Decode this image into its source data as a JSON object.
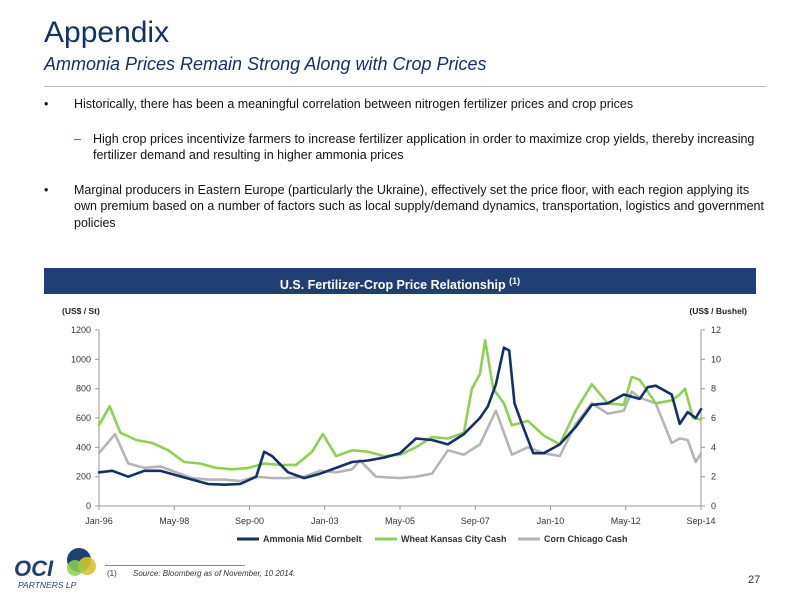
{
  "header": {
    "title": "Appendix",
    "subtitle": "Ammonia Prices Remain Strong Along with Crop Prices"
  },
  "bullets": {
    "b1": "Historically, there has been a meaningful correlation between nitrogen fertilizer prices and crop prices",
    "b1_sub": "High crop prices incentivize farmers to increase fertilizer application in order to maximize crop yields, thereby increasing fertilizer demand and resulting in higher ammonia prices",
    "b2": "Marginal producers in Eastern Europe (particularly the Ukraine), effectively set the price floor, with each region applying its own premium based on a number of factors such as local supply/demand dynamics, transportation, logistics and government policies"
  },
  "banner": {
    "title": "U.S. Fertilizer-Crop Price Relationship",
    "note": "(1)"
  },
  "chart_data": {
    "type": "line",
    "title": "U.S. Fertilizer-Crop Price Relationship (1)",
    "y_left_label": "(US$ / St)",
    "y_right_label": "(US$ / Bushel)",
    "x_ticks": [
      "Jan-96",
      "May-98",
      "Sep-00",
      "Jan-03",
      "May-05",
      "Sep-07",
      "Jan-10",
      "May-12",
      "Sep-14"
    ],
    "y_left_ticks": [
      "0",
      "200",
      "400",
      "600",
      "800",
      "1000",
      "1200"
    ],
    "y_right_ticks": [
      "0",
      "2",
      "4",
      "6",
      "8",
      "10",
      "12"
    ],
    "ylim_left": [
      0,
      1200
    ],
    "ylim_right": [
      0,
      12
    ],
    "xlim": [
      "1996-01",
      "2014-11"
    ],
    "grid": false,
    "legend_position": "bottom",
    "series": [
      {
        "name": "Ammonia Mid Cornbelt",
        "axis": "left",
        "color": "#12306b",
        "points": [
          [
            "1996-01",
            230
          ],
          [
            "1996-06",
            240
          ],
          [
            "1996-12",
            200
          ],
          [
            "1997-06",
            240
          ],
          [
            "1997-12",
            240
          ],
          [
            "1998-06",
            210
          ],
          [
            "1998-12",
            180
          ],
          [
            "1999-06",
            150
          ],
          [
            "1999-12",
            145
          ],
          [
            "2000-06",
            150
          ],
          [
            "2000-12",
            200
          ],
          [
            "2001-03",
            370
          ],
          [
            "2001-06",
            340
          ],
          [
            "2001-12",
            230
          ],
          [
            "2002-06",
            190
          ],
          [
            "2002-12",
            220
          ],
          [
            "2003-06",
            260
          ],
          [
            "2003-12",
            300
          ],
          [
            "2004-06",
            310
          ],
          [
            "2004-12",
            330
          ],
          [
            "2005-06",
            360
          ],
          [
            "2005-12",
            460
          ],
          [
            "2006-06",
            450
          ],
          [
            "2006-12",
            420
          ],
          [
            "2007-06",
            490
          ],
          [
            "2007-12",
            600
          ],
          [
            "2008-03",
            680
          ],
          [
            "2008-06",
            830
          ],
          [
            "2008-09",
            1080
          ],
          [
            "2008-11",
            1060
          ],
          [
            "2009-01",
            700
          ],
          [
            "2009-04",
            550
          ],
          [
            "2009-08",
            360
          ],
          [
            "2009-12",
            360
          ],
          [
            "2010-06",
            420
          ],
          [
            "2010-12",
            540
          ],
          [
            "2011-06",
            690
          ],
          [
            "2011-12",
            700
          ],
          [
            "2012-06",
            760
          ],
          [
            "2012-12",
            730
          ],
          [
            "2013-03",
            810
          ],
          [
            "2013-06",
            820
          ],
          [
            "2013-12",
            760
          ],
          [
            "2014-03",
            560
          ],
          [
            "2014-06",
            640
          ],
          [
            "2014-09",
            600
          ],
          [
            "2014-11",
            660
          ]
        ]
      },
      {
        "name": "Wheat Kansas City Cash",
        "axis": "right",
        "color": "#8dd150",
        "points": [
          [
            "1996-01",
            5.5
          ],
          [
            "1996-05",
            6.8
          ],
          [
            "1996-09",
            5.0
          ],
          [
            "1997-03",
            4.5
          ],
          [
            "1997-09",
            4.3
          ],
          [
            "1998-03",
            3.8
          ],
          [
            "1998-09",
            3.0
          ],
          [
            "1999-03",
            2.9
          ],
          [
            "1999-09",
            2.6
          ],
          [
            "2000-03",
            2.5
          ],
          [
            "2000-09",
            2.6
          ],
          [
            "2001-03",
            2.9
          ],
          [
            "2001-09",
            2.8
          ],
          [
            "2002-03",
            2.8
          ],
          [
            "2002-09",
            3.7
          ],
          [
            "2003-01",
            4.9
          ],
          [
            "2003-06",
            3.4
          ],
          [
            "2003-12",
            3.8
          ],
          [
            "2004-06",
            3.7
          ],
          [
            "2004-12",
            3.4
          ],
          [
            "2005-06",
            3.5
          ],
          [
            "2005-12",
            4.0
          ],
          [
            "2006-06",
            4.7
          ],
          [
            "2006-12",
            4.6
          ],
          [
            "2007-06",
            5.0
          ],
          [
            "2007-09",
            8.0
          ],
          [
            "2007-12",
            9.0
          ],
          [
            "2008-02",
            11.3
          ],
          [
            "2008-05",
            8.0
          ],
          [
            "2008-09",
            7.0
          ],
          [
            "2008-12",
            5.5
          ],
          [
            "2009-06",
            5.8
          ],
          [
            "2009-12",
            4.8
          ],
          [
            "2010-06",
            4.2
          ],
          [
            "2010-12",
            6.5
          ],
          [
            "2011-06",
            8.3
          ],
          [
            "2011-12",
            7.0
          ],
          [
            "2012-06",
            6.9
          ],
          [
            "2012-09",
            8.8
          ],
          [
            "2012-12",
            8.6
          ],
          [
            "2013-06",
            7.0
          ],
          [
            "2013-12",
            7.2
          ],
          [
            "2014-03",
            7.6
          ],
          [
            "2014-05",
            8.0
          ],
          [
            "2014-08",
            6.0
          ],
          [
            "2014-11",
            5.9
          ]
        ]
      },
      {
        "name": "Corn Chicago Cash",
        "axis": "right",
        "color": "#b5b5b5",
        "points": [
          [
            "1996-01",
            3.6
          ],
          [
            "1996-07",
            4.9
          ],
          [
            "1996-12",
            2.9
          ],
          [
            "1997-06",
            2.6
          ],
          [
            "1997-12",
            2.7
          ],
          [
            "1998-06",
            2.3
          ],
          [
            "1998-12",
            1.9
          ],
          [
            "1999-06",
            1.8
          ],
          [
            "1999-12",
            1.8
          ],
          [
            "2000-06",
            1.7
          ],
          [
            "2000-12",
            2.0
          ],
          [
            "2001-06",
            1.9
          ],
          [
            "2001-12",
            1.9
          ],
          [
            "2002-06",
            2.0
          ],
          [
            "2002-12",
            2.4
          ],
          [
            "2003-06",
            2.3
          ],
          [
            "2003-12",
            2.5
          ],
          [
            "2004-03",
            3.1
          ],
          [
            "2004-09",
            2.0
          ],
          [
            "2005-06",
            1.9
          ],
          [
            "2005-12",
            2.0
          ],
          [
            "2006-06",
            2.2
          ],
          [
            "2006-12",
            3.8
          ],
          [
            "2007-06",
            3.5
          ],
          [
            "2007-12",
            4.2
          ],
          [
            "2008-06",
            6.5
          ],
          [
            "2008-12",
            3.5
          ],
          [
            "2009-06",
            4.0
          ],
          [
            "2009-12",
            3.6
          ],
          [
            "2010-06",
            3.4
          ],
          [
            "2010-12",
            5.6
          ],
          [
            "2011-06",
            7.0
          ],
          [
            "2011-12",
            6.3
          ],
          [
            "2012-06",
            6.5
          ],
          [
            "2012-09",
            7.8
          ],
          [
            "2012-12",
            7.4
          ],
          [
            "2013-06",
            7.0
          ],
          [
            "2013-12",
            4.3
          ],
          [
            "2014-03",
            4.6
          ],
          [
            "2014-06",
            4.5
          ],
          [
            "2014-09",
            3.0
          ],
          [
            "2014-11",
            3.6
          ]
        ]
      }
    ]
  },
  "footer": {
    "logo_text": "OCI",
    "logo_sub": "PARTNERS LP",
    "footnote_num": "(1)",
    "footnote": "Source: Bloomberg as of November, 10 2014.",
    "page": "27"
  }
}
